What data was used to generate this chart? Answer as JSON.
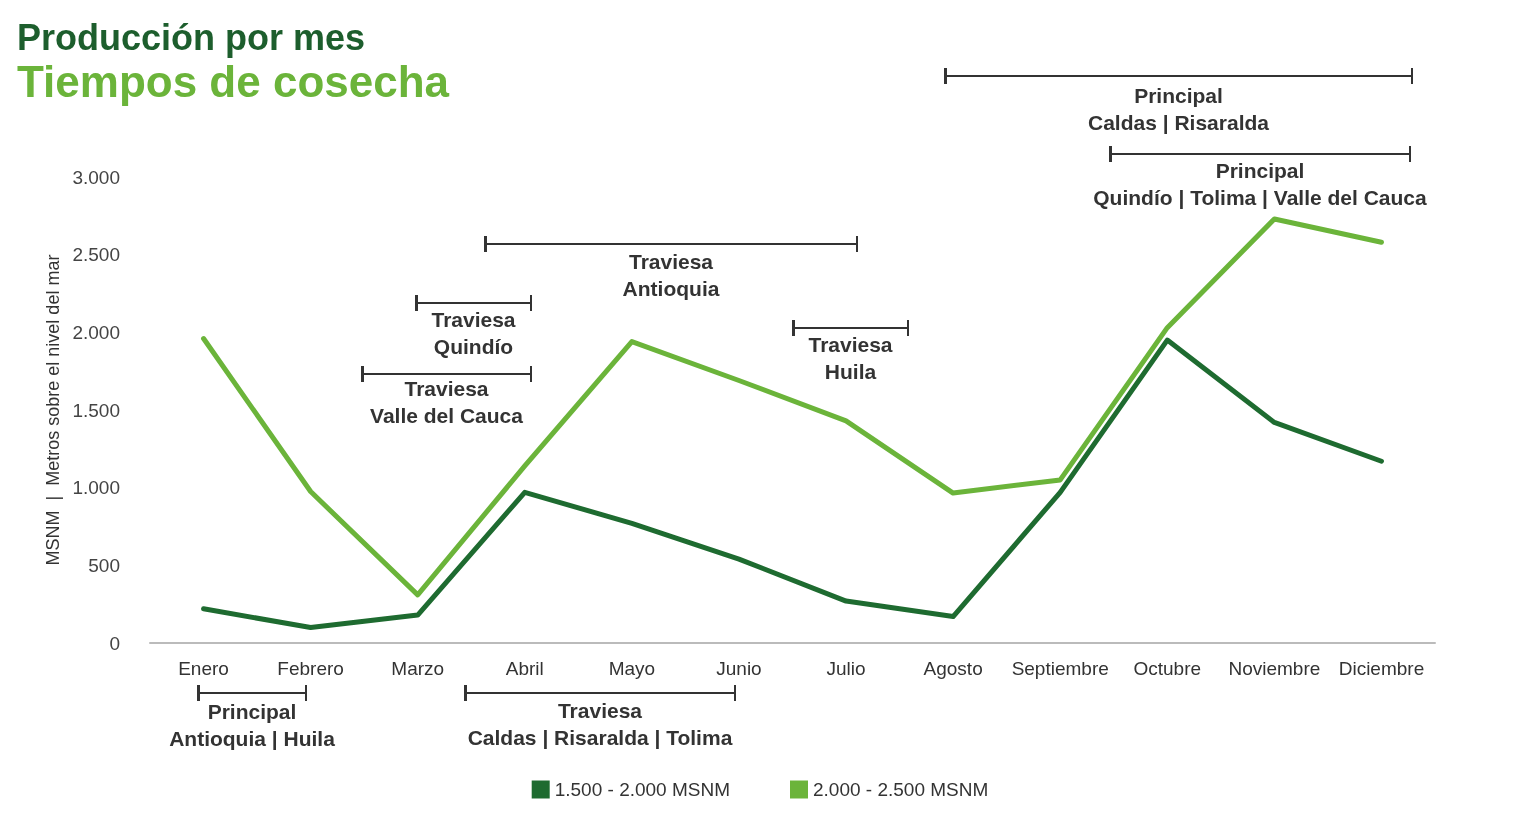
{
  "chart_data": {
    "type": "line",
    "title": "Producción por mes",
    "subtitle": "Tiempos de cosecha",
    "ylabel": "MSNM  |  Metros sobre el nivel del mar",
    "categories": [
      "Enero",
      "Febrero",
      "Marzo",
      "Abril",
      "Mayo",
      "Junio",
      "Julio",
      "Agosto",
      "Septiembre",
      "Octubre",
      "Noviembre",
      "Diciembre"
    ],
    "series": [
      {
        "name": "1.500 - 2.000 MSNM",
        "color": "#1e6b30",
        "values": [
          220,
          100,
          180,
          970,
          770,
          540,
          270,
          170,
          970,
          1950,
          1420,
          1170
        ]
      },
      {
        "name": "2.000 - 2.500 MSNM",
        "color": "#6bb43a",
        "values": [
          1960,
          975,
          310,
          1140,
          1940,
          1690,
          1430,
          965,
          1050,
          2030,
          2730,
          2580
        ]
      }
    ],
    "ylim": [
      0,
      3000
    ],
    "yticks": [
      {
        "value": 0,
        "label": "0"
      },
      {
        "value": 500,
        "label": "500"
      },
      {
        "value": 1000,
        "label": "1.000"
      },
      {
        "value": 1500,
        "label": "1.500"
      },
      {
        "value": 2000,
        "label": "2.000"
      },
      {
        "value": 2500,
        "label": "2.500"
      },
      {
        "value": 3000,
        "label": "3.000"
      }
    ],
    "annotations": [
      "Principal\nCaldas | Risaralda",
      "Principal\nQuindío | Tolima | Valle del Cauca",
      "Traviesa\nAntioquia",
      "Traviesa\nQuindío",
      "Traviesa\nValle del Cauca",
      "Traviesa\nHuila",
      "Principal\nAntioquia | Huila",
      "Traviesa\nCaldas | Risaralda | Tolima"
    ],
    "grid": false,
    "legend": "bottom",
    "marker": "none",
    "line_style": "solid"
  }
}
